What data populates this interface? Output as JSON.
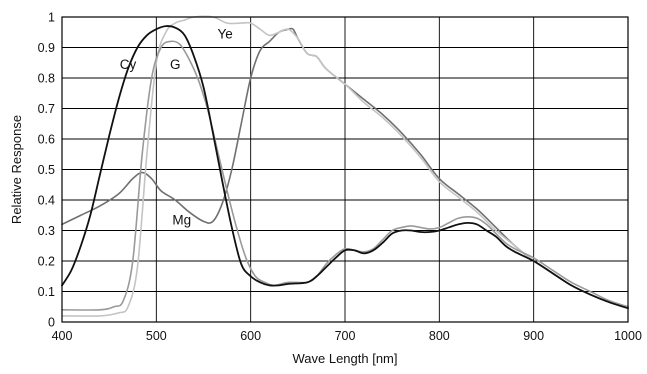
{
  "chart_data": {
    "type": "line",
    "title": "",
    "xlabel": "Wave Length [nm]",
    "ylabel": "Relative Response",
    "xlim": [
      400,
      1000
    ],
    "ylim": [
      0,
      1
    ],
    "x_ticks": [
      "400",
      "500",
      "600",
      "700",
      "800",
      "900",
      "1000"
    ],
    "y_ticks": [
      "0",
      "0.1",
      "0.2",
      "0.3",
      "0.4",
      "0.5",
      "0.6",
      "0.7",
      "0.8",
      "0.9",
      "1"
    ],
    "grid": true,
    "legend": "none",
    "series": [
      {
        "name": "Mg",
        "color": "#707070",
        "width": 1.6,
        "points": [
          [
            400,
            0.32
          ],
          [
            420,
            0.35
          ],
          [
            440,
            0.38
          ],
          [
            460,
            0.42
          ],
          [
            475,
            0.47
          ],
          [
            485,
            0.49
          ],
          [
            495,
            0.47
          ],
          [
            505,
            0.43
          ],
          [
            520,
            0.4
          ],
          [
            535,
            0.36
          ],
          [
            550,
            0.33
          ],
          [
            560,
            0.33
          ],
          [
            570,
            0.39
          ],
          [
            580,
            0.5
          ],
          [
            590,
            0.65
          ],
          [
            600,
            0.8
          ],
          [
            610,
            0.89
          ],
          [
            620,
            0.92
          ],
          [
            630,
            0.95
          ],
          [
            640,
            0.96
          ],
          [
            645,
            0.96
          ],
          [
            650,
            0.93
          ],
          [
            660,
            0.88
          ],
          [
            670,
            0.87
          ],
          [
            680,
            0.83
          ],
          [
            700,
            0.78
          ],
          [
            720,
            0.73
          ],
          [
            740,
            0.68
          ],
          [
            760,
            0.62
          ],
          [
            780,
            0.55
          ],
          [
            800,
            0.47
          ],
          [
            820,
            0.42
          ],
          [
            840,
            0.37
          ],
          [
            860,
            0.31
          ],
          [
            880,
            0.25
          ],
          [
            900,
            0.2
          ],
          [
            920,
            0.16
          ],
          [
            940,
            0.12
          ],
          [
            960,
            0.09
          ],
          [
            980,
            0.065
          ],
          [
            1000,
            0.05
          ]
        ]
      },
      {
        "name": "Ye",
        "color": "#c4c4c4",
        "width": 1.6,
        "points": [
          [
            400,
            0.02
          ],
          [
            440,
            0.02
          ],
          [
            460,
            0.03
          ],
          [
            470,
            0.05
          ],
          [
            480,
            0.18
          ],
          [
            490,
            0.55
          ],
          [
            500,
            0.85
          ],
          [
            510,
            0.95
          ],
          [
            520,
            0.98
          ],
          [
            530,
            0.99
          ],
          [
            540,
            1.0
          ],
          [
            560,
            1.0
          ],
          [
            575,
            0.98
          ],
          [
            590,
            0.98
          ],
          [
            600,
            0.98
          ],
          [
            610,
            0.96
          ],
          [
            620,
            0.94
          ],
          [
            630,
            0.95
          ],
          [
            640,
            0.96
          ],
          [
            650,
            0.93
          ],
          [
            660,
            0.88
          ],
          [
            670,
            0.87
          ],
          [
            680,
            0.83
          ],
          [
            700,
            0.78
          ],
          [
            720,
            0.72
          ],
          [
            740,
            0.67
          ],
          [
            760,
            0.61
          ],
          [
            780,
            0.54
          ],
          [
            800,
            0.46
          ],
          [
            820,
            0.41
          ],
          [
            840,
            0.36
          ],
          [
            860,
            0.3
          ],
          [
            880,
            0.25
          ],
          [
            900,
            0.2
          ],
          [
            920,
            0.16
          ],
          [
            940,
            0.12
          ],
          [
            960,
            0.09
          ],
          [
            980,
            0.065
          ],
          [
            1000,
            0.05
          ]
        ]
      },
      {
        "name": "G",
        "color": "#9a9a9a",
        "width": 1.6,
        "points": [
          [
            400,
            0.04
          ],
          [
            440,
            0.04
          ],
          [
            455,
            0.05
          ],
          [
            465,
            0.07
          ],
          [
            475,
            0.2
          ],
          [
            485,
            0.55
          ],
          [
            495,
            0.8
          ],
          [
            505,
            0.9
          ],
          [
            515,
            0.92
          ],
          [
            525,
            0.91
          ],
          [
            535,
            0.86
          ],
          [
            545,
            0.79
          ],
          [
            555,
            0.69
          ],
          [
            565,
            0.56
          ],
          [
            575,
            0.43
          ],
          [
            585,
            0.31
          ],
          [
            595,
            0.21
          ],
          [
            605,
            0.15
          ],
          [
            615,
            0.13
          ],
          [
            625,
            0.12
          ],
          [
            640,
            0.13
          ],
          [
            660,
            0.13
          ],
          [
            670,
            0.15
          ],
          [
            680,
            0.19
          ],
          [
            690,
            0.22
          ],
          [
            700,
            0.24
          ],
          [
            710,
            0.235
          ],
          [
            720,
            0.23
          ],
          [
            730,
            0.24
          ],
          [
            740,
            0.27
          ],
          [
            750,
            0.3
          ],
          [
            760,
            0.31
          ],
          [
            770,
            0.315
          ],
          [
            780,
            0.31
          ],
          [
            790,
            0.305
          ],
          [
            800,
            0.31
          ],
          [
            810,
            0.325
          ],
          [
            820,
            0.34
          ],
          [
            830,
            0.345
          ],
          [
            840,
            0.34
          ],
          [
            850,
            0.32
          ],
          [
            860,
            0.29
          ],
          [
            870,
            0.26
          ],
          [
            880,
            0.24
          ],
          [
            900,
            0.21
          ],
          [
            920,
            0.17
          ],
          [
            940,
            0.13
          ],
          [
            960,
            0.1
          ],
          [
            980,
            0.07
          ],
          [
            1000,
            0.05
          ]
        ]
      },
      {
        "name": "Cy",
        "color": "#111111",
        "width": 1.8,
        "points": [
          [
            400,
            0.12
          ],
          [
            410,
            0.17
          ],
          [
            420,
            0.25
          ],
          [
            430,
            0.35
          ],
          [
            440,
            0.48
          ],
          [
            450,
            0.61
          ],
          [
            460,
            0.73
          ],
          [
            470,
            0.83
          ],
          [
            480,
            0.9
          ],
          [
            490,
            0.94
          ],
          [
            500,
            0.96
          ],
          [
            510,
            0.97
          ],
          [
            520,
            0.965
          ],
          [
            530,
            0.94
          ],
          [
            540,
            0.87
          ],
          [
            550,
            0.77
          ],
          [
            560,
            0.62
          ],
          [
            570,
            0.46
          ],
          [
            580,
            0.31
          ],
          [
            590,
            0.19
          ],
          [
            600,
            0.15
          ],
          [
            610,
            0.13
          ],
          [
            620,
            0.12
          ],
          [
            630,
            0.12
          ],
          [
            640,
            0.125
          ],
          [
            660,
            0.13
          ],
          [
            670,
            0.15
          ],
          [
            680,
            0.18
          ],
          [
            690,
            0.21
          ],
          [
            700,
            0.235
          ],
          [
            710,
            0.235
          ],
          [
            720,
            0.225
          ],
          [
            730,
            0.235
          ],
          [
            740,
            0.26
          ],
          [
            750,
            0.29
          ],
          [
            760,
            0.3
          ],
          [
            770,
            0.3
          ],
          [
            780,
            0.295
          ],
          [
            790,
            0.295
          ],
          [
            800,
            0.3
          ],
          [
            810,
            0.31
          ],
          [
            820,
            0.32
          ],
          [
            830,
            0.325
          ],
          [
            840,
            0.32
          ],
          [
            850,
            0.3
          ],
          [
            860,
            0.28
          ],
          [
            870,
            0.25
          ],
          [
            880,
            0.23
          ],
          [
            900,
            0.2
          ],
          [
            920,
            0.16
          ],
          [
            940,
            0.12
          ],
          [
            960,
            0.09
          ],
          [
            980,
            0.065
          ],
          [
            1000,
            0.045
          ]
        ]
      }
    ],
    "annotations": [
      {
        "text": "Cy",
        "x": 470,
        "y": 0.83
      },
      {
        "text": "G",
        "x": 520,
        "y": 0.83
      },
      {
        "text": "Ye",
        "x": 573,
        "y": 0.93
      },
      {
        "text": "Mg",
        "x": 527,
        "y": 0.32
      }
    ]
  }
}
